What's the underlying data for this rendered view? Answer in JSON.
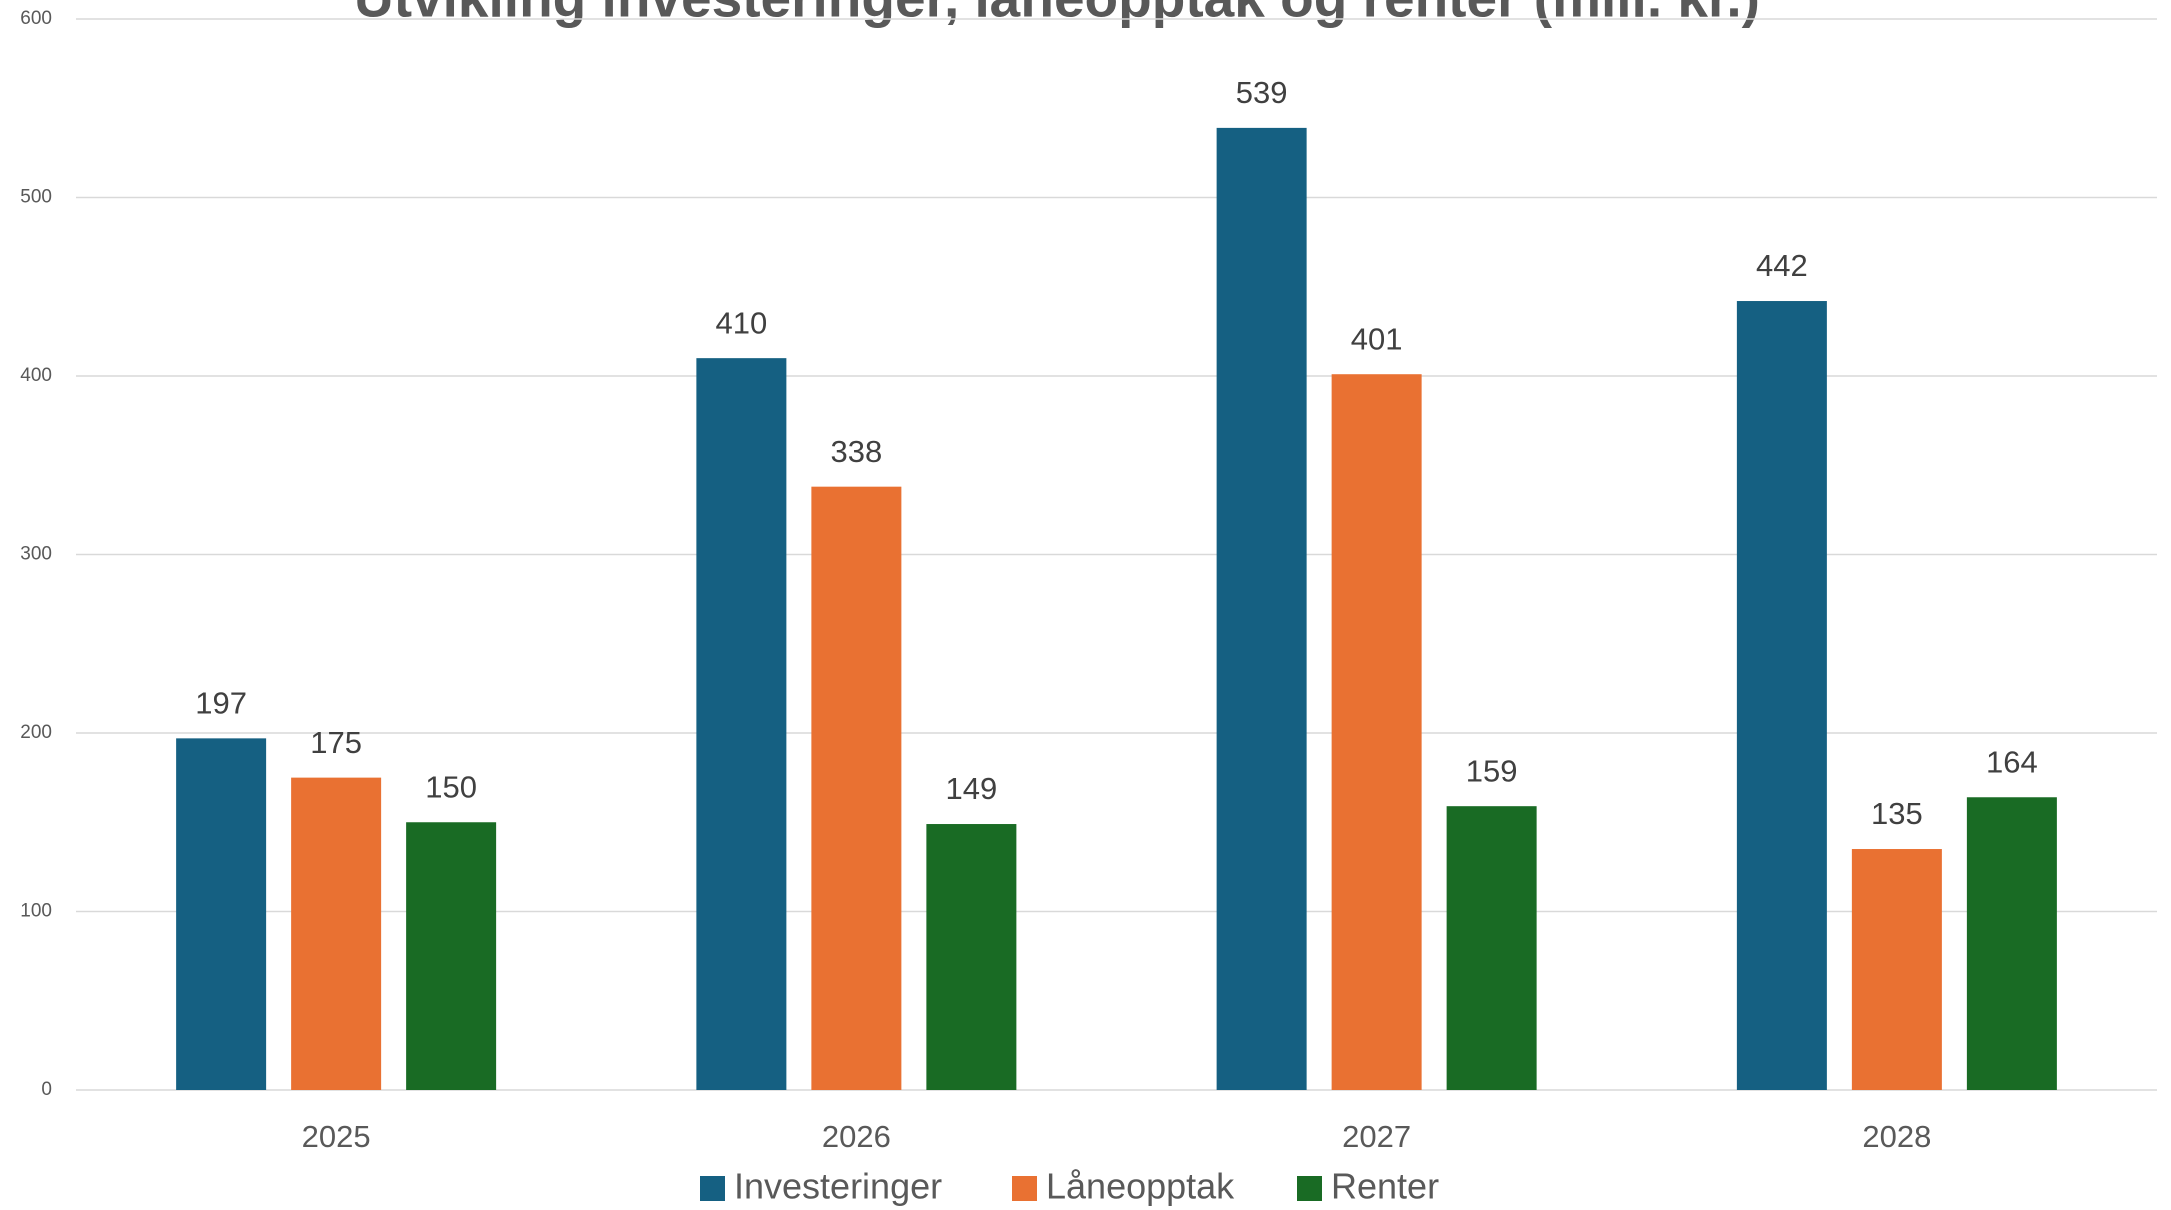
{
  "chart_data": {
    "type": "bar",
    "title": "Utvikling investeringer, låneopptak og renter (mill. kr.)",
    "categories": [
      "2025",
      "2026",
      "2027",
      "2028"
    ],
    "series": [
      {
        "name": "Investeringer",
        "color": "#156082",
        "values": [
          197,
          410,
          539,
          442
        ]
      },
      {
        "name": "Låneopptak",
        "color": "#e97132",
        "values": [
          175,
          338,
          401,
          135
        ]
      },
      {
        "name": "Renter",
        "color": "#196b24",
        "values": [
          150,
          149,
          159,
          164
        ]
      }
    ],
    "ylim": [
      0,
      600
    ],
    "yticks": [
      0,
      100,
      200,
      300,
      400,
      500,
      600
    ],
    "grid": true,
    "legend": "bottom"
  }
}
